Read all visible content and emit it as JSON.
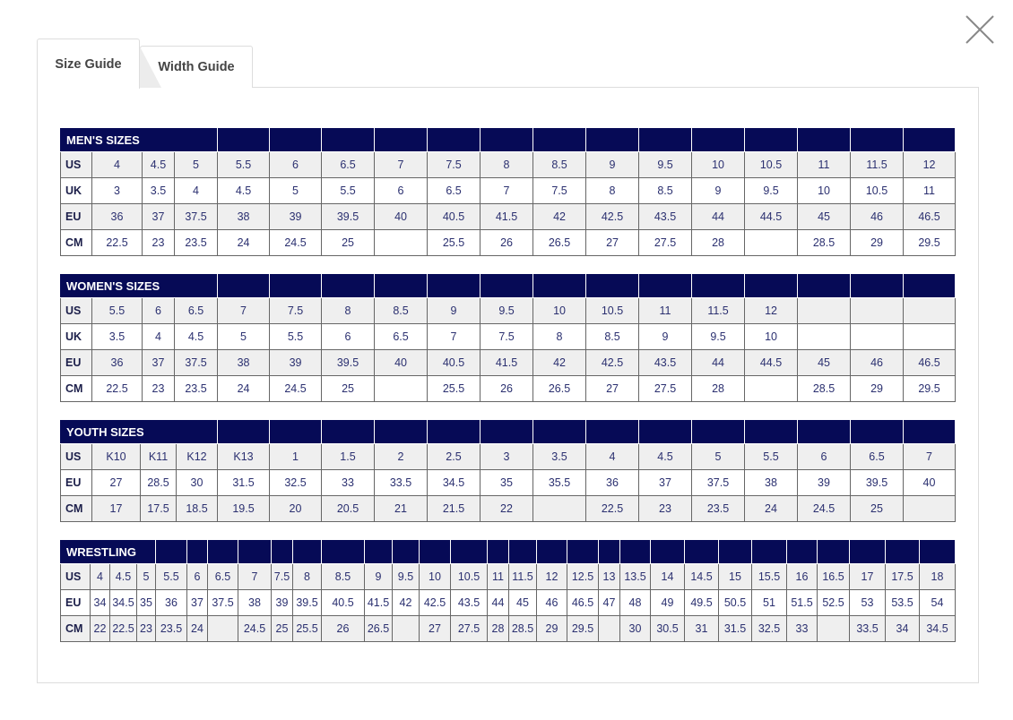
{
  "tabs": [
    {
      "label": "Size Guide",
      "active": true
    },
    {
      "label": "Width Guide",
      "active": false
    }
  ],
  "close_icon": "close-x-icon",
  "colors": {
    "header": "#060a56",
    "row_alt": "#efefef",
    "text": "#2b3070"
  },
  "tables": [
    {
      "title": "MEN'S SIZES",
      "title_span": 4,
      "rows": [
        {
          "label": "US",
          "values": [
            "4",
            "4.5",
            "5",
            "5.5",
            "6",
            "6.5",
            "7",
            "7.5",
            "8",
            "8.5",
            "9",
            "9.5",
            "10",
            "10.5",
            "11",
            "11.5",
            "12"
          ]
        },
        {
          "label": "UK",
          "values": [
            "3",
            "3.5",
            "4",
            "4.5",
            "5",
            "5.5",
            "6",
            "6.5",
            "7",
            "7.5",
            "8",
            "8.5",
            "9",
            "9.5",
            "10",
            "10.5",
            "11"
          ]
        },
        {
          "label": "EU",
          "values": [
            "36",
            "37",
            "37.5",
            "38",
            "39",
            "39.5",
            "40",
            "40.5",
            "41.5",
            "42",
            "42.5",
            "43.5",
            "44",
            "44.5",
            "45",
            "46",
            "46.5"
          ]
        },
        {
          "label": "CM",
          "values": [
            "22.5",
            "23",
            "23.5",
            "24",
            "24.5",
            "25",
            "",
            "25.5",
            "26",
            "26.5",
            "27",
            "27.5",
            "28",
            "",
            "28.5",
            "29",
            "29.5"
          ]
        }
      ]
    },
    {
      "title": "WOMEN'S SIZES",
      "title_span": 4,
      "rows": [
        {
          "label": "US",
          "values": [
            "5.5",
            "6",
            "6.5",
            "7",
            "7.5",
            "8",
            "8.5",
            "9",
            "9.5",
            "10",
            "10.5",
            "11",
            "11.5",
            "12",
            "",
            "",
            ""
          ]
        },
        {
          "label": "UK",
          "values": [
            "3.5",
            "4",
            "4.5",
            "5",
            "5.5",
            "6",
            "6.5",
            "7",
            "7.5",
            "8",
            "8.5",
            "9",
            "9.5",
            "10",
            "",
            "",
            ""
          ]
        },
        {
          "label": "EU",
          "values": [
            "36",
            "37",
            "37.5",
            "38",
            "39",
            "39.5",
            "40",
            "40.5",
            "41.5",
            "42",
            "42.5",
            "43.5",
            "44",
            "44.5",
            "45",
            "46",
            "46.5"
          ]
        },
        {
          "label": "CM",
          "values": [
            "22.5",
            "23",
            "23.5",
            "24",
            "24.5",
            "25",
            "",
            "25.5",
            "26",
            "26.5",
            "27",
            "27.5",
            "28",
            "",
            "28.5",
            "29",
            "29.5"
          ]
        }
      ]
    },
    {
      "title": "YOUTH SIZES",
      "title_span": 4,
      "rows": [
        {
          "label": "US",
          "values": [
            "K10",
            "K11",
            "K12",
            "K13",
            "1",
            "1.5",
            "2",
            "2.5",
            "3",
            "3.5",
            "4",
            "4.5",
            "5",
            "5.5",
            "6",
            "6.5",
            "7"
          ]
        },
        {
          "label": "EU",
          "values": [
            "27",
            "28.5",
            "30",
            "31.5",
            "32.5",
            "33",
            "33.5",
            "34.5",
            "35",
            "35.5",
            "36",
            "37",
            "37.5",
            "38",
            "39",
            "39.5",
            "40"
          ]
        },
        {
          "label": "CM",
          "values": [
            "17",
            "17.5",
            "18.5",
            "19.5",
            "20",
            "20.5",
            "21",
            "21.5",
            "22",
            "",
            "22.5",
            "23",
            "23.5",
            "24",
            "24.5",
            "25",
            ""
          ]
        }
      ]
    },
    {
      "title": "WRESTLING",
      "title_span": 4,
      "rows": [
        {
          "label": "US",
          "values": [
            "4",
            "4.5",
            "5",
            "5.5",
            "6",
            "6.5",
            "7",
            "7.5",
            "8",
            "8.5",
            "9",
            "9.5",
            "10",
            "10.5",
            "11",
            "11.5",
            "12",
            "12.5",
            "13",
            "13.5",
            "14",
            "14.5",
            "15",
            "15.5",
            "16",
            "16.5",
            "17",
            "17.5",
            "18"
          ]
        },
        {
          "label": "EU",
          "values": [
            "34",
            "34.5",
            "35",
            "36",
            "37",
            "37.5",
            "38",
            "39",
            "39.5",
            "40.5",
            "41.5",
            "42",
            "42.5",
            "43.5",
            "44",
            "45",
            "46",
            "46.5",
            "47",
            "48",
            "49",
            "49.5",
            "50.5",
            "51",
            "51.5",
            "52.5",
            "53",
            "53.5",
            "54"
          ]
        },
        {
          "label": "CM",
          "values": [
            "22",
            "22.5",
            "23",
            "23.5",
            "24",
            "",
            "24.5",
            "25",
            "25.5",
            "26",
            "26.5",
            "",
            "27",
            "27.5",
            "28",
            "28.5",
            "29",
            "29.5",
            "",
            "30",
            "30.5",
            "31",
            "31.5",
            "32.5",
            "33",
            "",
            "33.5",
            "34",
            "34.5"
          ]
        }
      ]
    }
  ]
}
